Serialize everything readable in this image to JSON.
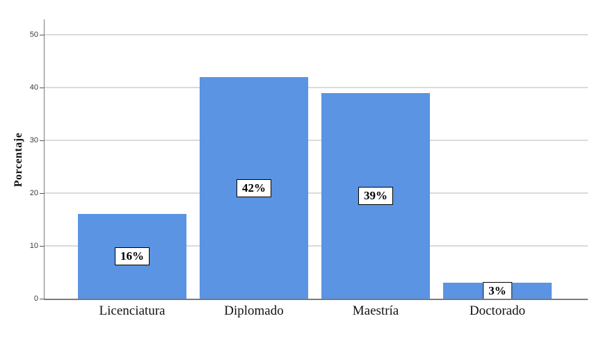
{
  "chart_data": {
    "type": "bar",
    "title": "",
    "categories": [
      "Licenciatura",
      "Diplomado",
      "Maestría",
      "Doctorado"
    ],
    "values": [
      16,
      42,
      39,
      3
    ],
    "data_labels": [
      "16%",
      "42%",
      "39%",
      "3%"
    ],
    "xlabel": "",
    "ylabel": "Porcentaje",
    "yticks": [
      0,
      10,
      20,
      30,
      40,
      50
    ],
    "ylim": [
      0,
      50
    ],
    "grid": true,
    "legend": false,
    "colors": {
      "bar_fill": "#5A94E2",
      "gridline": "#DADADA",
      "axis": "#7A7A7A",
      "tick": "#555555",
      "tick_label": "#3C3C3C",
      "label_box_bg": "#FFFFFF",
      "label_box_border": "#000000",
      "background": "#FFFFFF"
    }
  }
}
